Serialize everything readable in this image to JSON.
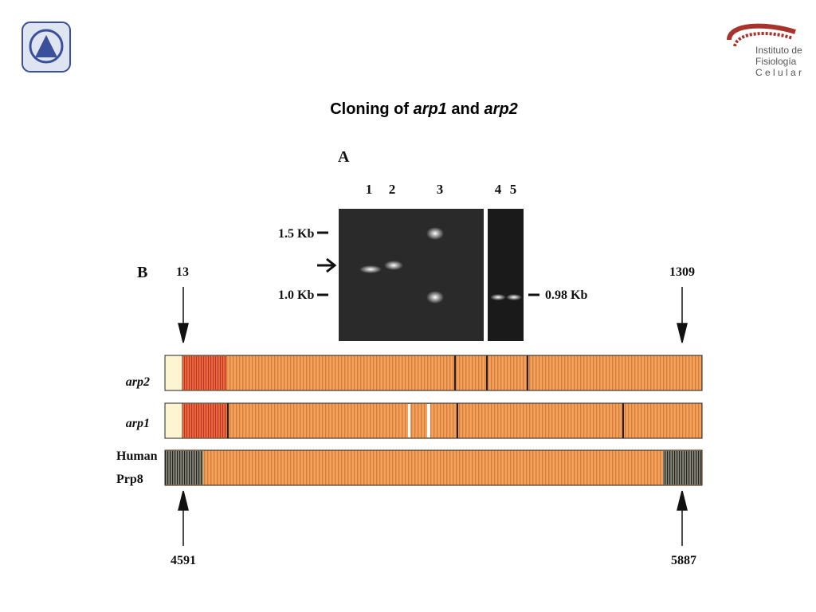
{
  "logo": {
    "line1": "Instituto de",
    "line2": "Fisiología",
    "line3": "C e l u l a r"
  },
  "title": {
    "part1": "Cloning of ",
    "part2": "arp1",
    "part3": " and ",
    "part4": "arp2"
  },
  "panel_a": {
    "label": "A",
    "lanes": [
      "1",
      "2",
      "3",
      "4",
      "5"
    ],
    "marker_high": "1.5 Kb",
    "marker_low": "1.0 Kb",
    "product": "0.98 Kb"
  },
  "panel_b": {
    "label": "B",
    "top_left": "13",
    "top_right": "1309",
    "bottom_left": "4591",
    "bottom_right": "5887",
    "tracks": [
      "arp2",
      "arp1",
      "Human",
      "Prp8"
    ]
  }
}
